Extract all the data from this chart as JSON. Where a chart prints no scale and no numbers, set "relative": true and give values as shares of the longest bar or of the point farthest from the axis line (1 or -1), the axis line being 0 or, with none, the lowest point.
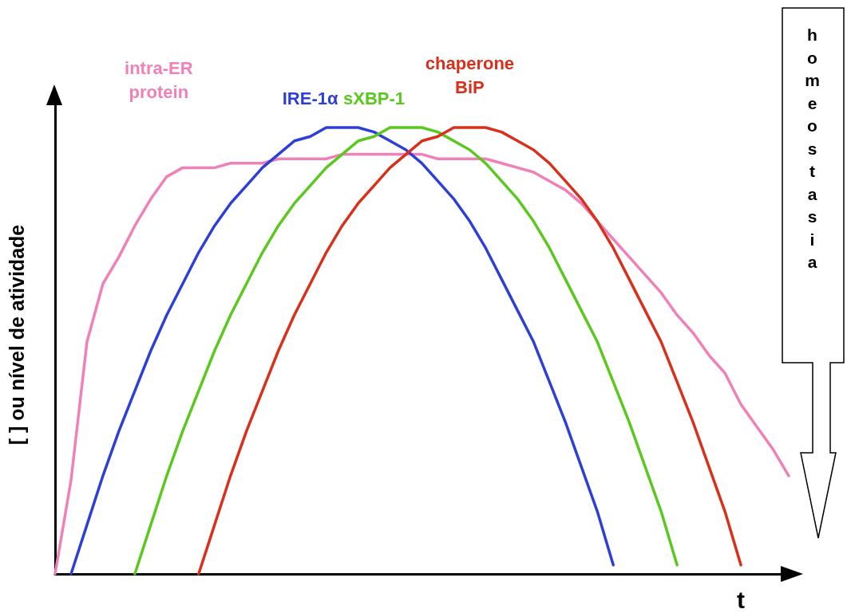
{
  "chart_data": {
    "type": "line",
    "relative": true,
    "xlabel": "t",
    "ylabel": "[ ] ou nível de atividade",
    "grid": false,
    "marker": "none",
    "line_style": "solid",
    "categories": [
      null,
      null,
      null,
      null,
      null,
      null,
      null,
      null,
      null,
      null,
      null,
      null,
      null,
      null,
      null,
      null,
      null,
      null,
      null,
      null,
      null,
      null,
      null,
      null,
      null,
      null,
      null,
      null,
      null,
      null,
      null,
      null,
      null,
      null,
      null,
      null,
      null,
      null,
      null,
      null,
      null,
      null,
      null,
      null,
      null,
      null,
      null
    ],
    "series": [
      {
        "name": "intra-ER protein",
        "color": "#f081b8",
        "values": [
          0,
          0.21,
          0.52,
          0.65,
          0.71,
          0.78,
          0.84,
          0.89,
          0.91,
          0.91,
          0.91,
          0.92,
          0.92,
          0.92,
          0.93,
          0.93,
          0.93,
          0.93,
          0.94,
          0.94,
          0.94,
          0.94,
          0.94,
          0.94,
          0.93,
          0.93,
          0.93,
          0.93,
          0.92,
          0.91,
          0.9,
          0.88,
          0.86,
          0.83,
          0.79,
          0.75,
          0.71,
          0.67,
          0.63,
          0.58,
          0.54,
          0.49,
          0.45,
          0.38,
          0.33,
          0.28,
          0.22
        ]
      },
      {
        "name": "IRE-1α",
        "color": "#2d3fd6",
        "values": [
          null,
          0,
          0.11,
          0.22,
          0.32,
          0.41,
          0.5,
          0.58,
          0.65,
          0.72,
          0.78,
          0.83,
          0.87,
          0.91,
          0.94,
          0.97,
          0.98,
          1,
          1,
          1,
          0.99,
          0.97,
          0.95,
          0.92,
          0.88,
          0.84,
          0.79,
          0.73,
          0.66,
          0.59,
          0.52,
          0.43,
          0.34,
          0.24,
          0.14,
          0.02,
          null,
          null,
          null,
          null,
          null,
          null,
          null,
          null,
          null,
          null,
          null
        ]
      },
      {
        "name": "sXBP-1",
        "color": "#5ac81e",
        "values": [
          null,
          null,
          null,
          null,
          null,
          0,
          0.11,
          0.22,
          0.32,
          0.41,
          0.5,
          0.58,
          0.65,
          0.72,
          0.78,
          0.83,
          0.87,
          0.91,
          0.94,
          0.97,
          0.98,
          1,
          1,
          1,
          0.99,
          0.97,
          0.95,
          0.92,
          0.88,
          0.84,
          0.79,
          0.73,
          0.66,
          0.59,
          0.52,
          0.43,
          0.34,
          0.24,
          0.14,
          0.02,
          null,
          null,
          null,
          null,
          null,
          null,
          null
        ]
      },
      {
        "name": "chaperone BiP",
        "color": "#d9301c",
        "values": [
          null,
          null,
          null,
          null,
          null,
          null,
          null,
          null,
          null,
          0,
          0.11,
          0.22,
          0.32,
          0.41,
          0.5,
          0.58,
          0.65,
          0.72,
          0.78,
          0.83,
          0.87,
          0.91,
          0.94,
          0.97,
          0.98,
          1,
          1,
          1,
          0.99,
          0.97,
          0.95,
          0.92,
          0.88,
          0.84,
          0.79,
          0.73,
          0.66,
          0.59,
          0.52,
          0.43,
          0.34,
          0.24,
          0.14,
          0.02,
          null,
          null,
          null
        ]
      }
    ],
    "annotations": [
      "homeostasia"
    ]
  }
}
